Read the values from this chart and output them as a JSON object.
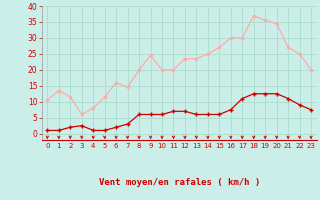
{
  "hours": [
    0,
    1,
    2,
    3,
    4,
    5,
    6,
    7,
    8,
    9,
    10,
    11,
    12,
    13,
    14,
    15,
    16,
    17,
    18,
    19,
    20,
    21,
    22,
    23
  ],
  "vent_moyen": [
    1,
    1,
    2,
    2.5,
    1,
    1,
    2,
    3,
    6,
    6,
    6,
    7,
    7,
    6,
    6,
    6,
    7.5,
    11,
    12.5,
    12.5,
    12.5,
    11,
    9,
    7.5
  ],
  "rafales": [
    10.5,
    13.5,
    11.5,
    6,
    8,
    11.5,
    16,
    14.5,
    20,
    24.5,
    20,
    20,
    23.5,
    23.5,
    25,
    27,
    30,
    30,
    37,
    35.5,
    34.5,
    27,
    25,
    20
  ],
  "line_color_moyen": "#cc0000",
  "line_color_rafales": "#ffaaaa",
  "bg_color": "#cceee8",
  "grid_color": "#aaddcc",
  "xlabel": "Vent moyen/en rafales ( km/h )",
  "xlabel_color": "#cc0000",
  "tick_color": "#cc0000",
  "arrow_color": "#cc0000",
  "ylim": [
    -2,
    40
  ],
  "yticks": [
    0,
    5,
    10,
    15,
    20,
    25,
    30,
    35,
    40
  ],
  "ytick_labels": [
    "0",
    "5",
    "10",
    "15",
    "20",
    "25",
    "30",
    "35",
    "40"
  ]
}
